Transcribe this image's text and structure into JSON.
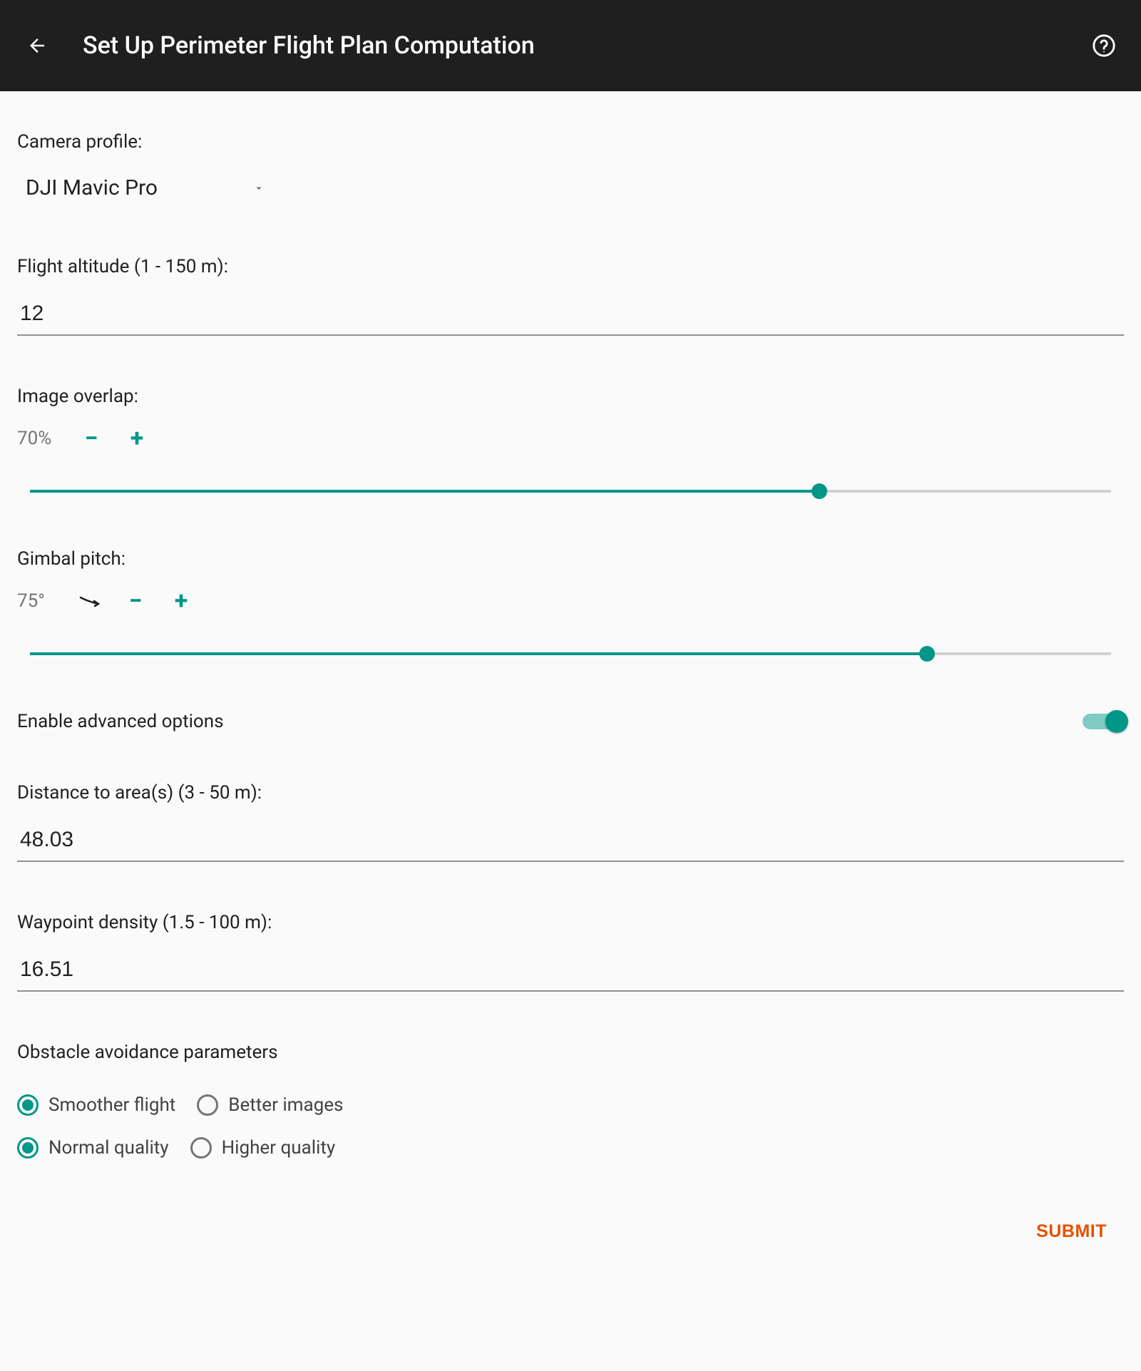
{
  "colors": {
    "appbar_bg": "#1f1f1f",
    "accent": "#009688",
    "accent_light": "#80cbc4",
    "page_bg": "#fafafa",
    "text_primary": "#212121",
    "text_secondary": "#757575",
    "input_underline": "#919191",
    "slider_track": "#d0d0d0",
    "submit_color": "#e65100"
  },
  "appbar": {
    "title": "Set Up Perimeter Flight Plan Computation"
  },
  "camera_profile": {
    "label": "Camera profile:",
    "selected": "DJI Mavic Pro"
  },
  "altitude": {
    "label": "Flight altitude (1 - 150 m):",
    "value": "12"
  },
  "overlap": {
    "label": "Image overlap:",
    "readout": "70%",
    "percent": 73
  },
  "gimbal": {
    "label": "Gimbal pitch:",
    "readout": "75°",
    "percent": 83
  },
  "advanced": {
    "label": "Enable advanced options",
    "enabled": true
  },
  "distance": {
    "label": "Distance to area(s) (3 - 50 m):",
    "value": "48.03"
  },
  "waypoint": {
    "label": "Waypoint density (1.5 - 100 m):",
    "value": "16.51"
  },
  "obstacle": {
    "label": "Obstacle avoidance parameters",
    "group1": {
      "option_a": "Smoother flight",
      "option_b": "Better images",
      "selected": "a"
    },
    "group2": {
      "option_a": "Normal quality",
      "option_b": "Higher quality",
      "selected": "a"
    }
  },
  "footer": {
    "submit": "SUBMIT"
  }
}
